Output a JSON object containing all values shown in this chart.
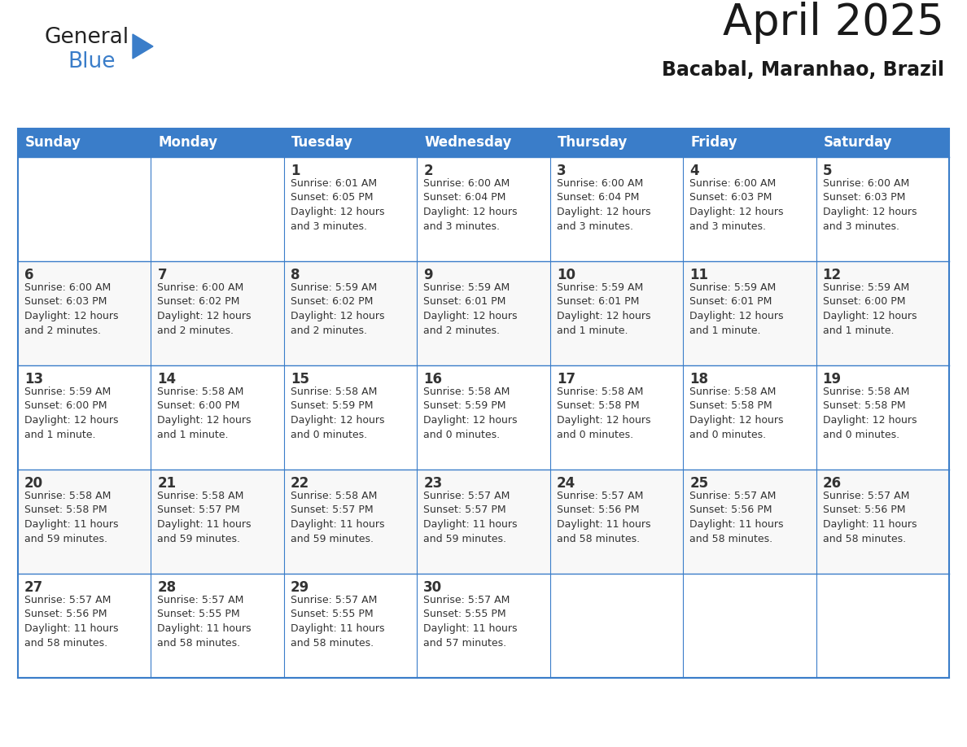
{
  "title": "April 2025",
  "subtitle": "Bacabal, Maranhao, Brazil",
  "header_color": "#3A7DC9",
  "header_text_color": "#FFFFFF",
  "border_color": "#3A7DC9",
  "row_border_color": "#3A7DC9",
  "text_color": "#444444",
  "days_of_week": [
    "Sunday",
    "Monday",
    "Tuesday",
    "Wednesday",
    "Thursday",
    "Friday",
    "Saturday"
  ],
  "calendar_data": [
    [
      {
        "day": "",
        "info": ""
      },
      {
        "day": "",
        "info": ""
      },
      {
        "day": "1",
        "info": "Sunrise: 6:01 AM\nSunset: 6:05 PM\nDaylight: 12 hours\nand 3 minutes."
      },
      {
        "day": "2",
        "info": "Sunrise: 6:00 AM\nSunset: 6:04 PM\nDaylight: 12 hours\nand 3 minutes."
      },
      {
        "day": "3",
        "info": "Sunrise: 6:00 AM\nSunset: 6:04 PM\nDaylight: 12 hours\nand 3 minutes."
      },
      {
        "day": "4",
        "info": "Sunrise: 6:00 AM\nSunset: 6:03 PM\nDaylight: 12 hours\nand 3 minutes."
      },
      {
        "day": "5",
        "info": "Sunrise: 6:00 AM\nSunset: 6:03 PM\nDaylight: 12 hours\nand 3 minutes."
      }
    ],
    [
      {
        "day": "6",
        "info": "Sunrise: 6:00 AM\nSunset: 6:03 PM\nDaylight: 12 hours\nand 2 minutes."
      },
      {
        "day": "7",
        "info": "Sunrise: 6:00 AM\nSunset: 6:02 PM\nDaylight: 12 hours\nand 2 minutes."
      },
      {
        "day": "8",
        "info": "Sunrise: 5:59 AM\nSunset: 6:02 PM\nDaylight: 12 hours\nand 2 minutes."
      },
      {
        "day": "9",
        "info": "Sunrise: 5:59 AM\nSunset: 6:01 PM\nDaylight: 12 hours\nand 2 minutes."
      },
      {
        "day": "10",
        "info": "Sunrise: 5:59 AM\nSunset: 6:01 PM\nDaylight: 12 hours\nand 1 minute."
      },
      {
        "day": "11",
        "info": "Sunrise: 5:59 AM\nSunset: 6:01 PM\nDaylight: 12 hours\nand 1 minute."
      },
      {
        "day": "12",
        "info": "Sunrise: 5:59 AM\nSunset: 6:00 PM\nDaylight: 12 hours\nand 1 minute."
      }
    ],
    [
      {
        "day": "13",
        "info": "Sunrise: 5:59 AM\nSunset: 6:00 PM\nDaylight: 12 hours\nand 1 minute."
      },
      {
        "day": "14",
        "info": "Sunrise: 5:58 AM\nSunset: 6:00 PM\nDaylight: 12 hours\nand 1 minute."
      },
      {
        "day": "15",
        "info": "Sunrise: 5:58 AM\nSunset: 5:59 PM\nDaylight: 12 hours\nand 0 minutes."
      },
      {
        "day": "16",
        "info": "Sunrise: 5:58 AM\nSunset: 5:59 PM\nDaylight: 12 hours\nand 0 minutes."
      },
      {
        "day": "17",
        "info": "Sunrise: 5:58 AM\nSunset: 5:58 PM\nDaylight: 12 hours\nand 0 minutes."
      },
      {
        "day": "18",
        "info": "Sunrise: 5:58 AM\nSunset: 5:58 PM\nDaylight: 12 hours\nand 0 minutes."
      },
      {
        "day": "19",
        "info": "Sunrise: 5:58 AM\nSunset: 5:58 PM\nDaylight: 12 hours\nand 0 minutes."
      }
    ],
    [
      {
        "day": "20",
        "info": "Sunrise: 5:58 AM\nSunset: 5:58 PM\nDaylight: 11 hours\nand 59 minutes."
      },
      {
        "day": "21",
        "info": "Sunrise: 5:58 AM\nSunset: 5:57 PM\nDaylight: 11 hours\nand 59 minutes."
      },
      {
        "day": "22",
        "info": "Sunrise: 5:58 AM\nSunset: 5:57 PM\nDaylight: 11 hours\nand 59 minutes."
      },
      {
        "day": "23",
        "info": "Sunrise: 5:57 AM\nSunset: 5:57 PM\nDaylight: 11 hours\nand 59 minutes."
      },
      {
        "day": "24",
        "info": "Sunrise: 5:57 AM\nSunset: 5:56 PM\nDaylight: 11 hours\nand 58 minutes."
      },
      {
        "day": "25",
        "info": "Sunrise: 5:57 AM\nSunset: 5:56 PM\nDaylight: 11 hours\nand 58 minutes."
      },
      {
        "day": "26",
        "info": "Sunrise: 5:57 AM\nSunset: 5:56 PM\nDaylight: 11 hours\nand 58 minutes."
      }
    ],
    [
      {
        "day": "27",
        "info": "Sunrise: 5:57 AM\nSunset: 5:56 PM\nDaylight: 11 hours\nand 58 minutes."
      },
      {
        "day": "28",
        "info": "Sunrise: 5:57 AM\nSunset: 5:55 PM\nDaylight: 11 hours\nand 58 minutes."
      },
      {
        "day": "29",
        "info": "Sunrise: 5:57 AM\nSunset: 5:55 PM\nDaylight: 11 hours\nand 58 minutes."
      },
      {
        "day": "30",
        "info": "Sunrise: 5:57 AM\nSunset: 5:55 PM\nDaylight: 11 hours\nand 57 minutes."
      },
      {
        "day": "",
        "info": ""
      },
      {
        "day": "",
        "info": ""
      },
      {
        "day": "",
        "info": ""
      }
    ]
  ]
}
